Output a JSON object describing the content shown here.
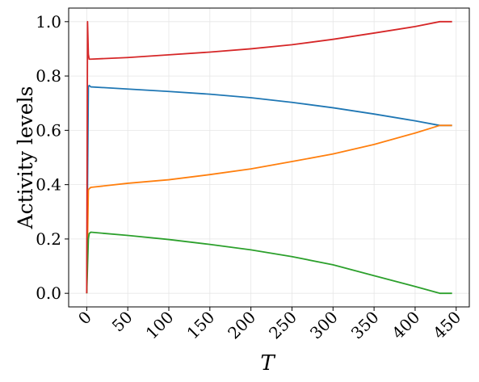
{
  "chart_data": {
    "type": "line",
    "title": "",
    "xlabel": "T",
    "ylabel": "Activity levels",
    "xlim": [
      -22,
      466
    ],
    "ylim": [
      -0.05,
      1.05
    ],
    "xticks": [
      0,
      50,
      100,
      150,
      200,
      250,
      300,
      350,
      400,
      450
    ],
    "xtick_labels": [
      "0",
      "50",
      "100",
      "150",
      "200",
      "250",
      "300",
      "350",
      "400",
      "450"
    ],
    "yticks": [
      0.0,
      0.2,
      0.4,
      0.6,
      0.8,
      1.0
    ],
    "ytick_labels": [
      "0.0",
      "0.2",
      "0.4",
      "0.6",
      "0.8",
      "1.0"
    ],
    "grid": true,
    "legend": false,
    "series": [
      {
        "color": "#1f77b4",
        "x": [
          0,
          1,
          2,
          3,
          5,
          50,
          100,
          150,
          200,
          250,
          300,
          350,
          400,
          430,
          445
        ],
        "y": [
          0.0,
          0.4,
          0.76,
          0.765,
          0.76,
          0.752,
          0.743,
          0.733,
          0.72,
          0.703,
          0.683,
          0.66,
          0.635,
          0.618,
          0.618
        ]
      },
      {
        "color": "#ff7f0e",
        "x": [
          0,
          1,
          2,
          3,
          5,
          50,
          100,
          150,
          200,
          250,
          300,
          350,
          400,
          430,
          445
        ],
        "y": [
          0.0,
          0.2,
          0.38,
          0.385,
          0.39,
          0.405,
          0.418,
          0.437,
          0.458,
          0.485,
          0.513,
          0.548,
          0.59,
          0.618,
          0.618
        ]
      },
      {
        "color": "#2ca02c",
        "x": [
          0,
          1,
          2,
          3,
          5,
          50,
          100,
          150,
          200,
          250,
          300,
          350,
          400,
          430,
          445
        ],
        "y": [
          0.0,
          0.1,
          0.2,
          0.22,
          0.225,
          0.213,
          0.198,
          0.18,
          0.16,
          0.135,
          0.105,
          0.065,
          0.025,
          0.0,
          0.0
        ]
      },
      {
        "color": "#d62728",
        "x": [
          0,
          1,
          2,
          3,
          5,
          50,
          100,
          150,
          200,
          250,
          300,
          350,
          400,
          430,
          445
        ],
        "y": [
          0.0,
          1.0,
          0.88,
          0.862,
          0.862,
          0.868,
          0.878,
          0.888,
          0.9,
          0.915,
          0.935,
          0.958,
          0.982,
          1.0,
          1.0
        ]
      }
    ]
  }
}
